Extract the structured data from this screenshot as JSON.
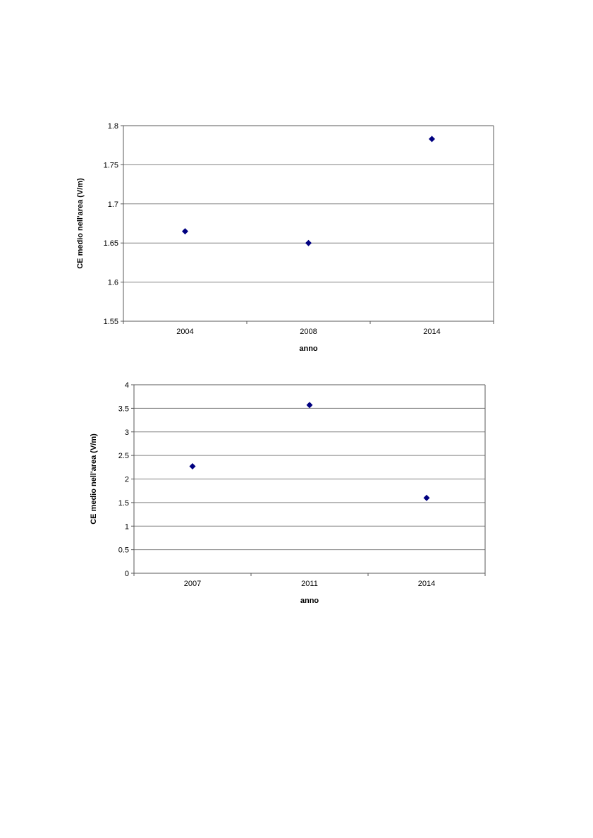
{
  "page": {
    "background": "#ffffff"
  },
  "chart_data": [
    {
      "type": "scatter",
      "title": "",
      "xlabel": "anno",
      "ylabel": "CE medio nell'area (V/m)",
      "categories": [
        "2004",
        "2008",
        "2014"
      ],
      "values": [
        1.665,
        1.65,
        1.783
      ],
      "ylim": [
        1.55,
        1.8
      ],
      "ytick_step": 0.05,
      "ytick_labels": [
        "1.55",
        "1.6",
        "1.65",
        "1.7",
        "1.75",
        "1.8"
      ],
      "grid": true,
      "legend": "none",
      "marker": {
        "shape": "diamond",
        "color": "#000080",
        "size": 9
      },
      "grid_color": "#808080",
      "axis_color": "#595959",
      "text_color": "#000000"
    },
    {
      "type": "scatter",
      "title": "",
      "xlabel": "anno",
      "ylabel": "CE medio nell'area (V/m)",
      "categories": [
        "2007",
        "2011",
        "2014"
      ],
      "values": [
        2.27,
        3.57,
        1.6
      ],
      "ylim": [
        0,
        4
      ],
      "ytick_step": 0.5,
      "ytick_labels": [
        "0",
        "0.5",
        "1",
        "1.5",
        "2",
        "2.5",
        "3",
        "3.5",
        "4"
      ],
      "grid": true,
      "legend": "none",
      "marker": {
        "shape": "diamond",
        "color": "#000080",
        "size": 9
      },
      "grid_color": "#808080",
      "axis_color": "#595959",
      "text_color": "#000000"
    }
  ]
}
